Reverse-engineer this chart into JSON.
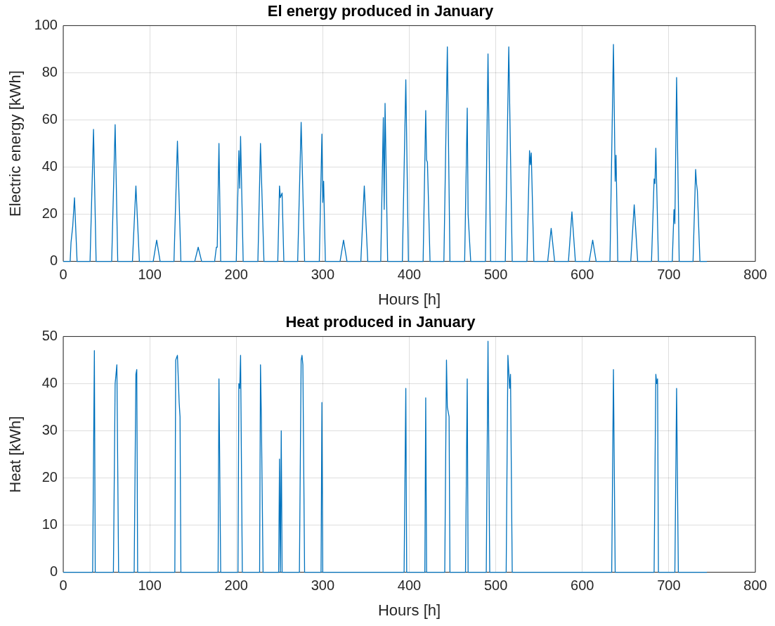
{
  "chart_data": [
    {
      "type": "line",
      "title": "El energy produced in January",
      "xlabel": "Hours [h]",
      "ylabel": "Electric energy [kWh]",
      "xlim": [
        0,
        800
      ],
      "xticks": [
        0,
        100,
        200,
        300,
        400,
        500,
        600,
        700,
        800
      ],
      "ylim": [
        0,
        100
      ],
      "yticks": [
        0,
        20,
        40,
        60,
        80,
        100
      ],
      "grid": true,
      "legend": false,
      "marker": "none",
      "line_style": "solid",
      "series": [
        {
          "color": "#0072bd",
          "x": [
            0,
            8,
            9,
            11,
            13,
            16,
            31,
            35,
            38,
            56,
            60,
            63,
            80,
            84,
            88,
            104,
            108,
            112,
            128,
            132,
            136,
            152,
            156,
            160,
            175,
            177,
            178,
            180,
            182,
            200,
            203,
            204,
            205,
            208,
            225,
            228,
            232,
            248,
            250,
            251,
            253,
            255,
            271,
            275,
            279,
            296,
            299,
            300,
            301,
            303,
            320,
            324,
            328,
            344,
            348,
            352,
            367,
            370,
            371,
            372,
            375,
            392,
            396,
            399,
            416,
            419,
            420,
            421,
            424,
            440,
            444,
            447,
            464,
            467,
            468,
            471,
            488,
            491,
            494,
            511,
            515,
            519,
            536,
            539,
            540,
            541,
            544,
            560,
            564,
            568,
            584,
            588,
            592,
            608,
            612,
            616,
            632,
            636,
            638,
            639,
            641,
            656,
            660,
            664,
            680,
            683,
            684,
            685,
            688,
            704,
            706,
            707,
            709,
            712,
            728,
            731,
            732,
            733,
            736,
            744
          ],
          "values": [
            0,
            0,
            8,
            15,
            27,
            0,
            0,
            56,
            0,
            0,
            58,
            0,
            0,
            32,
            0,
            0,
            9,
            0,
            0,
            51,
            0,
            0,
            6,
            0,
            0,
            6,
            6,
            50,
            0,
            0,
            47,
            31,
            53,
            0,
            0,
            50,
            0,
            0,
            32,
            27,
            29,
            0,
            0,
            59,
            0,
            0,
            54,
            25,
            34,
            0,
            0,
            9,
            0,
            0,
            32,
            0,
            0,
            61,
            22,
            67,
            0,
            0,
            77,
            0,
            0,
            64,
            43,
            42,
            0,
            0,
            91,
            0,
            0,
            65,
            20,
            0,
            0,
            88,
            0,
            0,
            91,
            0,
            0,
            47,
            41,
            46,
            0,
            0,
            14,
            0,
            0,
            21,
            0,
            0,
            9,
            0,
            0,
            92,
            34,
            45,
            0,
            0,
            24,
            0,
            0,
            35,
            33,
            48,
            0,
            0,
            22,
            16,
            78,
            0,
            0,
            39,
            33,
            30,
            0,
            0
          ]
        }
      ]
    },
    {
      "type": "line",
      "title": "Heat produced in January",
      "xlabel": "Hours [h]",
      "ylabel": "Heat [kWh]",
      "xlim": [
        0,
        800
      ],
      "xticks": [
        0,
        100,
        200,
        300,
        400,
        500,
        600,
        700,
        800
      ],
      "ylim": [
        0,
        50
      ],
      "yticks": [
        0,
        10,
        20,
        30,
        40,
        50
      ],
      "grid": true,
      "legend": false,
      "marker": "none",
      "line_style": "solid",
      "series": [
        {
          "color": "#0072bd",
          "x": [
            0,
            34,
            36,
            37,
            58,
            60,
            62,
            64,
            82,
            84,
            85,
            86,
            129,
            130,
            132,
            134,
            135,
            136,
            179,
            180,
            182,
            202,
            203,
            204,
            205,
            207,
            227,
            228,
            229,
            231,
            249,
            250,
            251,
            252,
            253,
            273,
            275,
            276,
            277,
            279,
            298,
            299,
            300,
            394,
            396,
            397,
            418,
            419,
            420,
            441,
            443,
            444,
            446,
            447,
            465,
            467,
            468,
            489,
            491,
            493,
            512,
            514,
            516,
            517,
            519,
            634,
            636,
            638,
            683,
            685,
            686,
            687,
            688,
            707,
            709,
            711,
            744
          ],
          "values": [
            0,
            0,
            47,
            0,
            0,
            40,
            44,
            0,
            0,
            42,
            43,
            0,
            0,
            45,
            46,
            36,
            33,
            0,
            0,
            41,
            0,
            0,
            40,
            39,
            46,
            0,
            0,
            44,
            33,
            0,
            0,
            24,
            0,
            30,
            0,
            0,
            45,
            46,
            44,
            0,
            0,
            36,
            0,
            0,
            39,
            0,
            0,
            37,
            0,
            0,
            45,
            35,
            33,
            0,
            0,
            41,
            0,
            0,
            49,
            0,
            0,
            46,
            39,
            42,
            0,
            0,
            43,
            0,
            0,
            42,
            40,
            41,
            0,
            0,
            39,
            0,
            0
          ]
        }
      ]
    }
  ]
}
